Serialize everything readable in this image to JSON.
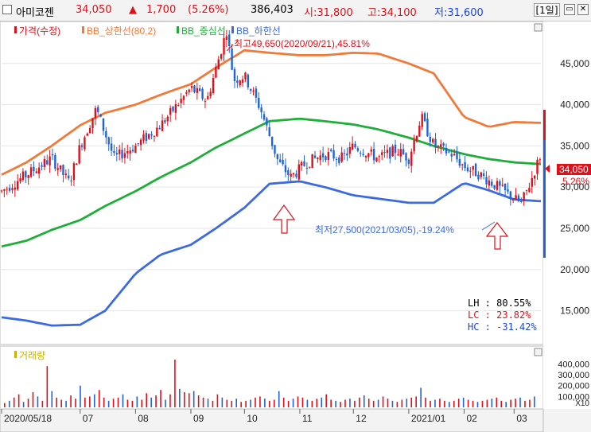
{
  "header": {
    "name": "아미코젠",
    "price": "34,050",
    "change_arrow": "▲",
    "change": "1,700",
    "change_pct": "(5.26%)",
    "volume": "386,403",
    "open": "시:31,800",
    "high": "고:34,100",
    "low": "저:31,600",
    "period": "[1일]",
    "button_icons": [
      "window-icon",
      "close-icon"
    ]
  },
  "legend": {
    "price": "가격(수정)",
    "upper": "BB_상한선(80,2)",
    "middle": "BB_중심선",
    "lower": "BB_하한선"
  },
  "volume_legend": "거래량",
  "annotations": {
    "max": "최고49,650(2020/09/21),45.81%",
    "min": "최저27,500(2021/03/05),-19.24%"
  },
  "last_price": {
    "value": "34,050",
    "pct": "5.26%"
  },
  "stats": {
    "lh": "LH :   80.55%",
    "lc": "LC :   23.82%",
    "hc": "HC :  -31.42%"
  },
  "colors": {
    "up": "#e0101a",
    "down": "#1f64d8",
    "upper_band": "#f07a3a",
    "middle_band": "#1fae3a",
    "lower_band": "#3c6ae0"
  },
  "chart_data": {
    "type": "line",
    "title": "",
    "y_ticks": [
      45000,
      40000,
      35000,
      30000,
      25000,
      20000,
      15000
    ],
    "ylim": [
      11000,
      50000
    ],
    "volume_ticks": [
      "400,000",
      "300,000",
      "200,000",
      "100,000"
    ],
    "volume_unit": "X10",
    "x_ticks": [
      "2020/05/18",
      "07",
      "08",
      "09",
      "10",
      "11",
      "12",
      "2021/01",
      "02",
      "03"
    ],
    "x_tick_dates": [
      "2020-05-18",
      "2020-07-01",
      "2020-08-01",
      "2020-09-01",
      "2020-10-01",
      "2020-11-01",
      "2020-12-01",
      "2021-01-01",
      "2021-02-01",
      "2021-03-01"
    ],
    "x_range": [
      "2020-05-18",
      "2021-03-16"
    ],
    "series": [
      {
        "name": "BB_상한선(80,2)",
        "points": [
          [
            "2020-05-18",
            31500
          ],
          [
            "2020-06-01",
            33000
          ],
          [
            "2020-06-15",
            35000
          ],
          [
            "2020-07-01",
            37500
          ],
          [
            "2020-07-15",
            39000
          ],
          [
            "2020-08-01",
            40000
          ],
          [
            "2020-08-15",
            41200
          ],
          [
            "2020-09-01",
            42500
          ],
          [
            "2020-09-15",
            44500
          ],
          [
            "2020-10-01",
            46600
          ],
          [
            "2020-10-15",
            46300
          ],
          [
            "2020-11-01",
            46000
          ],
          [
            "2020-11-15",
            46000
          ],
          [
            "2020-12-01",
            46300
          ],
          [
            "2020-12-15",
            46200
          ],
          [
            "2021-01-01",
            45000
          ],
          [
            "2021-01-15",
            43800
          ],
          [
            "2021-02-01",
            38500
          ],
          [
            "2021-02-15",
            37300
          ],
          [
            "2021-03-01",
            37900
          ],
          [
            "2021-03-15",
            37800
          ]
        ]
      },
      {
        "name": "BB_중심선",
        "points": [
          [
            "2020-05-18",
            22800
          ],
          [
            "2020-06-01",
            23500
          ],
          [
            "2020-06-15",
            24800
          ],
          [
            "2020-07-01",
            26000
          ],
          [
            "2020-07-15",
            27700
          ],
          [
            "2020-08-01",
            29500
          ],
          [
            "2020-08-15",
            31200
          ],
          [
            "2020-09-01",
            33000
          ],
          [
            "2020-09-15",
            34800
          ],
          [
            "2020-10-01",
            36500
          ],
          [
            "2020-10-15",
            38000
          ],
          [
            "2020-11-01",
            38300
          ],
          [
            "2020-11-15",
            38000
          ],
          [
            "2020-12-01",
            37600
          ],
          [
            "2020-12-15",
            37000
          ],
          [
            "2021-01-01",
            36000
          ],
          [
            "2021-01-15",
            35000
          ],
          [
            "2021-02-01",
            34000
          ],
          [
            "2021-02-15",
            33400
          ],
          [
            "2021-03-01",
            33000
          ],
          [
            "2021-03-15",
            32800
          ]
        ]
      },
      {
        "name": "BB_하한선",
        "points": [
          [
            "2020-05-18",
            14200
          ],
          [
            "2020-06-01",
            13800
          ],
          [
            "2020-06-15",
            13200
          ],
          [
            "2020-07-01",
            13300
          ],
          [
            "2020-07-15",
            15000
          ],
          [
            "2020-08-01",
            19500
          ],
          [
            "2020-08-15",
            21800
          ],
          [
            "2020-09-01",
            23000
          ],
          [
            "2020-09-15",
            25000
          ],
          [
            "2020-10-01",
            27500
          ],
          [
            "2020-10-15",
            30400
          ],
          [
            "2020-11-01",
            30700
          ],
          [
            "2020-11-15",
            30000
          ],
          [
            "2020-12-01",
            29000
          ],
          [
            "2020-12-15",
            28600
          ],
          [
            "2021-01-01",
            28100
          ],
          [
            "2021-01-15",
            28100
          ],
          [
            "2021-02-01",
            30500
          ],
          [
            "2021-02-15",
            29600
          ],
          [
            "2021-03-01",
            28500
          ],
          [
            "2021-03-15",
            28300
          ]
        ]
      },
      {
        "name": "가격(수정)",
        "points": [
          [
            "2020-05-18",
            29500
          ],
          [
            "2020-06-01",
            31500
          ],
          [
            "2020-06-15",
            33500
          ],
          [
            "2020-06-25",
            30500
          ],
          [
            "2020-07-01",
            35000
          ],
          [
            "2020-07-10",
            39500
          ],
          [
            "2020-07-20",
            33500
          ],
          [
            "2020-08-01",
            35000
          ],
          [
            "2020-08-15",
            37500
          ],
          [
            "2020-09-01",
            42000
          ],
          [
            "2020-09-10",
            40500
          ],
          [
            "2020-09-21",
            49000
          ],
          [
            "2020-09-25",
            43000
          ],
          [
            "2020-10-01",
            43500
          ],
          [
            "2020-10-10",
            39500
          ],
          [
            "2020-10-20",
            33000
          ],
          [
            "2020-10-27",
            31200
          ],
          [
            "2020-11-05",
            33000
          ],
          [
            "2020-11-15",
            34000
          ],
          [
            "2020-11-25",
            33500
          ],
          [
            "2020-12-01",
            35000
          ],
          [
            "2020-12-15",
            33500
          ],
          [
            "2020-12-25",
            34500
          ],
          [
            "2021-01-01",
            33500
          ],
          [
            "2021-01-08",
            38500
          ],
          [
            "2021-01-15",
            35000
          ],
          [
            "2021-01-25",
            34000
          ],
          [
            "2021-02-01",
            32500
          ],
          [
            "2021-02-10",
            31500
          ],
          [
            "2021-02-20",
            30000
          ],
          [
            "2021-03-05",
            28000
          ],
          [
            "2021-03-10",
            30500
          ],
          [
            "2021-03-16",
            34050
          ]
        ]
      }
    ],
    "volume_bars": [
      40,
      60,
      90,
      120,
      50,
      80,
      140,
      100,
      60,
      380,
      150,
      90,
      70,
      60,
      110,
      80,
      200,
      90,
      100,
      120,
      160,
      90,
      60,
      80,
      90,
      120,
      70,
      60,
      100,
      70,
      130,
      90,
      110,
      160,
      70,
      120,
      440,
      170,
      140,
      130,
      150,
      110,
      90,
      80,
      60,
      120,
      90,
      70,
      60,
      80,
      50,
      60,
      70,
      90,
      100,
      80,
      60,
      70,
      150,
      90,
      60,
      80,
      100,
      90,
      70,
      60,
      80,
      90,
      120,
      70,
      60,
      50,
      70,
      80,
      60,
      90,
      110,
      80,
      60,
      70,
      100,
      80,
      60,
      50,
      70,
      80,
      90,
      100,
      180,
      90,
      60,
      70,
      80,
      60,
      50,
      60,
      80,
      90,
      70,
      60,
      50,
      60,
      70,
      80,
      90,
      60,
      50,
      70,
      80,
      90,
      60,
      70,
      100
    ]
  }
}
